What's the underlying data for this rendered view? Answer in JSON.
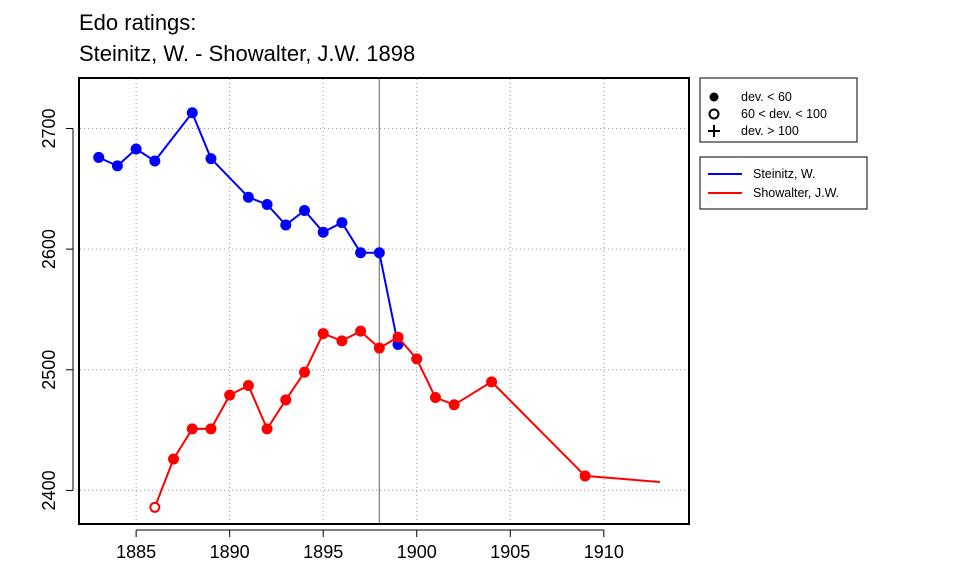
{
  "chart_data": {
    "type": "line",
    "title": [
      "Edo ratings:",
      "Steinitz, W. - Showalter, J.W. 1898"
    ],
    "xlabel": "",
    "ylabel": "",
    "xlim": [
      1882,
      1914.5
    ],
    "ylim": [
      2373,
      2741
    ],
    "xticks": [
      1885,
      1890,
      1895,
      1900,
      1905,
      1910
    ],
    "yticks": [
      2400,
      2500,
      2600,
      2700
    ],
    "grid": "dotted",
    "vline_x": 1898,
    "deviation_legend": [
      "dev. < 60",
      "60 < dev. < 100",
      "dev. > 100"
    ],
    "series": [
      {
        "name": "Steinitz, W.",
        "color": "#0000ff",
        "points": [
          {
            "x": 1883,
            "y": 2676,
            "dev": "low"
          },
          {
            "x": 1884,
            "y": 2669,
            "dev": "low"
          },
          {
            "x": 1885,
            "y": 2683,
            "dev": "low"
          },
          {
            "x": 1886,
            "y": 2673,
            "dev": "low"
          },
          {
            "x": 1888,
            "y": 2713,
            "dev": "low"
          },
          {
            "x": 1889,
            "y": 2675,
            "dev": "low"
          },
          {
            "x": 1891,
            "y": 2643,
            "dev": "low"
          },
          {
            "x": 1892,
            "y": 2637,
            "dev": "low"
          },
          {
            "x": 1893,
            "y": 2620,
            "dev": "low"
          },
          {
            "x": 1894,
            "y": 2632,
            "dev": "low"
          },
          {
            "x": 1895,
            "y": 2614,
            "dev": "low"
          },
          {
            "x": 1896,
            "y": 2622,
            "dev": "low"
          },
          {
            "x": 1897,
            "y": 2597,
            "dev": "low"
          },
          {
            "x": 1898,
            "y": 2597,
            "dev": "low"
          },
          {
            "x": 1899,
            "y": 2521,
            "dev": "low"
          }
        ]
      },
      {
        "name": "Showalter, J.W.",
        "color": "#ff0000",
        "points": [
          {
            "x": 1886,
            "y": 2386,
            "dev": "mid"
          },
          {
            "x": 1887,
            "y": 2426,
            "dev": "low"
          },
          {
            "x": 1888,
            "y": 2451,
            "dev": "low"
          },
          {
            "x": 1889,
            "y": 2451,
            "dev": "low"
          },
          {
            "x": 1890,
            "y": 2479,
            "dev": "low"
          },
          {
            "x": 1891,
            "y": 2487,
            "dev": "low"
          },
          {
            "x": 1892,
            "y": 2451,
            "dev": "low"
          },
          {
            "x": 1893,
            "y": 2475,
            "dev": "low"
          },
          {
            "x": 1894,
            "y": 2498,
            "dev": "low"
          },
          {
            "x": 1895,
            "y": 2530,
            "dev": "low"
          },
          {
            "x": 1896,
            "y": 2524,
            "dev": "low"
          },
          {
            "x": 1897,
            "y": 2532,
            "dev": "low"
          },
          {
            "x": 1898,
            "y": 2518,
            "dev": "low"
          },
          {
            "x": 1899,
            "y": 2527,
            "dev": "low"
          },
          {
            "x": 1900,
            "y": 2509,
            "dev": "low"
          },
          {
            "x": 1901,
            "y": 2477,
            "dev": "low"
          },
          {
            "x": 1902,
            "y": 2471,
            "dev": "low"
          },
          {
            "x": 1904,
            "y": 2490,
            "dev": "low"
          },
          {
            "x": 1909,
            "y": 2412,
            "dev": "low"
          },
          {
            "x": 1913,
            "y": 2407,
            "dev": "none"
          }
        ]
      }
    ]
  }
}
